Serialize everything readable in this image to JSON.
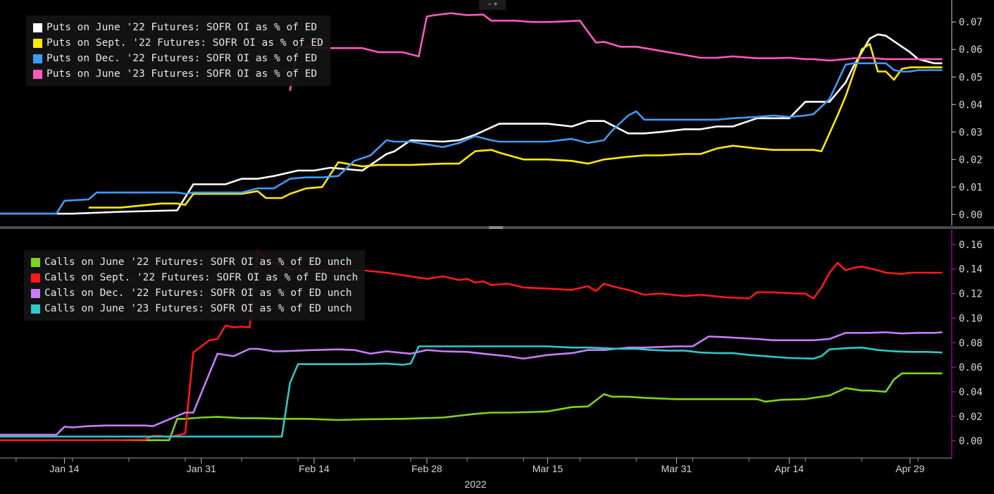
{
  "toolbar": {
    "icon": "chart-menu-icon",
    "glyph": "⌁ ▾"
  },
  "x_axis": {
    "ticks": [
      {
        "label": "Jan 14",
        "day": 13
      },
      {
        "label": "Jan 31",
        "day": 30
      },
      {
        "label": "Feb 14",
        "day": 44
      },
      {
        "label": "Feb 28",
        "day": 58
      },
      {
        "label": "Mar 15",
        "day": 73
      },
      {
        "label": "Mar 31",
        "day": 89
      },
      {
        "label": "Apr 14",
        "day": 103
      },
      {
        "label": "Apr 29",
        "day": 118
      }
    ],
    "year_label": "2022",
    "range": [
      5,
      123
    ]
  },
  "chart_data": [
    {
      "type": "line",
      "panel": "top",
      "ylim": [
        -0.004,
        0.078
      ],
      "y_ticks": [
        "0.07",
        "0.06",
        "0.05",
        "0.04",
        "0.03",
        "0.02",
        "0.01",
        "0.00"
      ],
      "y_tick_values": [
        0.07,
        0.06,
        0.05,
        0.04,
        0.03,
        0.02,
        0.01,
        0.0
      ],
      "legend": "top-left",
      "series": [
        {
          "name": "Puts on June '22 Futures: SOFR OI as % of ED",
          "color": "#ffffff",
          "x": [
            5,
            14,
            20,
            27,
            29,
            33,
            35,
            37,
            39,
            42,
            44,
            46,
            48,
            50,
            53,
            54,
            56,
            60,
            62,
            64,
            67,
            70,
            73,
            76,
            78,
            80,
            83,
            85,
            87,
            90,
            92,
            94,
            96,
            99,
            101,
            103,
            105,
            106,
            108,
            110,
            111,
            113,
            114,
            115,
            117,
            118,
            119,
            121,
            122
          ],
          "y": [
            0.0003,
            0.0003,
            0.001,
            0.0015,
            0.011,
            0.011,
            0.013,
            0.013,
            0.014,
            0.016,
            0.016,
            0.017,
            0.0165,
            0.016,
            0.022,
            0.023,
            0.027,
            0.0265,
            0.027,
            0.029,
            0.033,
            0.033,
            0.033,
            0.032,
            0.034,
            0.034,
            0.0295,
            0.0295,
            0.03,
            0.031,
            0.031,
            0.032,
            0.032,
            0.035,
            0.035,
            0.035,
            0.041,
            0.041,
            0.041,
            0.048,
            0.054,
            0.064,
            0.0655,
            0.065,
            0.061,
            0.059,
            0.0565,
            0.055,
            0.055
          ]
        },
        {
          "name": "Puts on Sept. '22 Futures: SOFR OI as % of ED",
          "color": "#ffeb00",
          "x": [
            16,
            20,
            25,
            27,
            28,
            29,
            35,
            37,
            38,
            40,
            41,
            43,
            45,
            47,
            50,
            52,
            56,
            60,
            62,
            64,
            66,
            67,
            70,
            73,
            76,
            78,
            80,
            83,
            85,
            87,
            90,
            92,
            94,
            96,
            99,
            101,
            104,
            106,
            107,
            109,
            110,
            112,
            113,
            114,
            115,
            116,
            117,
            118,
            119,
            121,
            122
          ],
          "y": [
            0.0025,
            0.0025,
            0.004,
            0.004,
            0.0035,
            0.0075,
            0.0075,
            0.0085,
            0.006,
            0.006,
            0.0075,
            0.0095,
            0.01,
            0.019,
            0.0175,
            0.018,
            0.018,
            0.0185,
            0.0185,
            0.023,
            0.0235,
            0.0225,
            0.02,
            0.02,
            0.0195,
            0.0185,
            0.02,
            0.021,
            0.0215,
            0.0215,
            0.022,
            0.022,
            0.024,
            0.025,
            0.024,
            0.0235,
            0.0235,
            0.0235,
            0.023,
            0.036,
            0.043,
            0.06,
            0.062,
            0.052,
            0.052,
            0.049,
            0.053,
            0.0535,
            0.0535,
            0.0535,
            0.0535
          ]
        },
        {
          "name": "Puts on Dec. '22 Futures: SOFR OI as % of ED",
          "color": "#3f9bf5",
          "x": [
            5,
            12,
            13,
            16,
            17,
            20,
            25,
            27,
            28,
            29,
            33,
            35,
            37,
            39,
            41,
            43,
            45,
            47,
            49,
            51,
            53,
            54,
            56,
            60,
            62,
            64,
            66,
            67,
            70,
            73,
            76,
            78,
            80,
            81,
            83,
            84,
            85,
            87,
            90,
            92,
            94,
            96,
            99,
            101,
            103,
            105,
            106,
            108,
            110,
            111,
            113,
            114,
            115,
            116,
            117,
            118,
            119,
            121,
            122
          ],
          "y": [
            0.0003,
            0.0003,
            0.005,
            0.0055,
            0.008,
            0.008,
            0.008,
            0.008,
            0.0075,
            0.008,
            0.008,
            0.008,
            0.0095,
            0.0095,
            0.013,
            0.0135,
            0.0135,
            0.014,
            0.0195,
            0.0215,
            0.027,
            0.0265,
            0.0265,
            0.0245,
            0.026,
            0.0285,
            0.027,
            0.0265,
            0.0265,
            0.0265,
            0.0275,
            0.026,
            0.027,
            0.0305,
            0.036,
            0.0375,
            0.0345,
            0.0345,
            0.0345,
            0.0345,
            0.0345,
            0.035,
            0.0355,
            0.036,
            0.0355,
            0.036,
            0.0365,
            0.042,
            0.0545,
            0.055,
            0.055,
            0.055,
            0.055,
            0.0525,
            0.052,
            0.052,
            0.0525,
            0.0525,
            0.0525
          ]
        },
        {
          "name": "Puts on June '23 Futures: SOFR OI as % of ED",
          "color": "#ff59c2",
          "x": [
            41,
            42,
            46,
            50,
            52,
            55,
            57,
            58,
            59,
            61,
            63,
            65,
            66,
            69,
            71,
            73,
            75,
            77,
            79,
            80,
            82,
            84,
            86,
            88,
            90,
            92,
            94,
            96,
            99,
            101,
            103,
            105,
            106,
            108,
            110,
            111,
            113,
            115,
            117,
            119,
            121,
            122
          ],
          "y": [
            0.045,
            0.061,
            0.0605,
            0.0605,
            0.059,
            0.059,
            0.0575,
            0.072,
            0.0725,
            0.0732,
            0.0725,
            0.0727,
            0.0705,
            0.0705,
            0.07,
            0.07,
            0.0702,
            0.0705,
            0.0625,
            0.0628,
            0.061,
            0.061,
            0.06,
            0.059,
            0.058,
            0.057,
            0.057,
            0.0575,
            0.0568,
            0.0568,
            0.057,
            0.0565,
            0.0565,
            0.056,
            0.0565,
            0.0568,
            0.057,
            0.0565,
            0.0565,
            0.0565,
            0.0565,
            0.0565
          ]
        }
      ]
    },
    {
      "type": "line",
      "panel": "bottom",
      "ylim": [
        -0.014,
        0.172
      ],
      "y_ticks": [
        "0.16",
        "0.14",
        "0.12",
        "0.10",
        "0.08",
        "0.06",
        "0.04",
        "0.02",
        "0.00"
      ],
      "y_tick_values": [
        0.16,
        0.14,
        0.12,
        0.1,
        0.08,
        0.06,
        0.04,
        0.02,
        0.0
      ],
      "legend": "top-left",
      "series": [
        {
          "name": "Calls on June '22 Futures: SOFR OI as % of ED  unch",
          "color": "#7ed321",
          "x": [
            18,
            26,
            27,
            28,
            30,
            32,
            35,
            37,
            40,
            43,
            47,
            50,
            55,
            60,
            64,
            66,
            68,
            71,
            73,
            76,
            78,
            80,
            81,
            83,
            85,
            89,
            94,
            99,
            100,
            102,
            105,
            107,
            108,
            110,
            112,
            113,
            115,
            116,
            117,
            118,
            120,
            122
          ],
          "y": [
            0.0005,
            0.0005,
            0.018,
            0.018,
            0.019,
            0.0195,
            0.0185,
            0.0185,
            0.018,
            0.018,
            0.017,
            0.0175,
            0.018,
            0.019,
            0.022,
            0.023,
            0.023,
            0.0235,
            0.024,
            0.0275,
            0.028,
            0.038,
            0.036,
            0.036,
            0.035,
            0.034,
            0.034,
            0.034,
            0.032,
            0.0335,
            0.034,
            0.036,
            0.037,
            0.043,
            0.041,
            0.041,
            0.04,
            0.05,
            0.055,
            0.055,
            0.055,
            0.055
          ]
        },
        {
          "name": "Calls on Sept. '22 Futures: SOFR OI as % of ED  unch",
          "color": "#ff1a1a",
          "x": [
            5,
            20,
            23,
            24,
            25,
            26,
            28,
            29,
            31,
            32,
            33,
            34,
            35,
            36,
            37,
            38,
            39,
            41,
            43,
            45,
            47,
            50,
            53,
            55,
            58,
            60,
            62,
            63,
            64,
            65,
            66,
            68,
            70,
            73,
            76,
            78,
            79,
            80,
            81,
            83,
            85,
            87,
            90,
            92,
            95,
            98,
            99,
            101,
            104,
            105,
            106,
            107,
            108,
            109,
            110,
            111,
            112,
            114,
            115,
            117,
            118,
            120,
            122
          ],
          "y": [
            0.0005,
            0.0005,
            0.001,
            0.004,
            0.004,
            0.003,
            0.006,
            0.072,
            0.082,
            0.083,
            0.094,
            0.0925,
            0.093,
            0.0925,
            0.155,
            0.148,
            0.145,
            0.14,
            0.138,
            0.139,
            0.138,
            0.139,
            0.137,
            0.135,
            0.132,
            0.134,
            0.131,
            0.132,
            0.129,
            0.13,
            0.127,
            0.128,
            0.125,
            0.124,
            0.123,
            0.126,
            0.122,
            0.128,
            0.126,
            0.123,
            0.119,
            0.12,
            0.118,
            0.119,
            0.117,
            0.116,
            0.121,
            0.121,
            0.12,
            0.12,
            0.116,
            0.125,
            0.137,
            0.145,
            0.139,
            0.141,
            0.142,
            0.139,
            0.137,
            0.136,
            0.137,
            0.137,
            0.137
          ]
        },
        {
          "name": "Calls on Dec. '22 Futures: SOFR OI as % of ED  unch",
          "color": "#c77dff",
          "x": [
            5,
            12,
            13,
            14,
            16,
            18,
            21,
            23,
            24,
            28,
            29,
            32,
            34,
            36,
            37,
            39,
            40,
            42,
            44,
            47,
            49,
            51,
            53,
            56,
            58,
            60,
            63,
            65,
            68,
            70,
            73,
            76,
            78,
            80,
            83,
            85,
            89,
            91,
            93,
            95,
            99,
            101,
            103,
            105,
            106,
            108,
            110,
            111,
            113,
            115,
            117,
            119,
            121,
            122
          ],
          "y": [
            0.005,
            0.005,
            0.0115,
            0.011,
            0.012,
            0.0125,
            0.0125,
            0.0125,
            0.012,
            0.023,
            0.023,
            0.071,
            0.069,
            0.075,
            0.075,
            0.073,
            0.073,
            0.0735,
            0.074,
            0.0745,
            0.074,
            0.071,
            0.073,
            0.071,
            0.074,
            0.073,
            0.0725,
            0.071,
            0.069,
            0.067,
            0.07,
            0.0715,
            0.074,
            0.074,
            0.076,
            0.076,
            0.077,
            0.077,
            0.085,
            0.0845,
            0.083,
            0.082,
            0.082,
            0.082,
            0.082,
            0.083,
            0.088,
            0.088,
            0.088,
            0.0885,
            0.0875,
            0.088,
            0.088,
            0.0885
          ]
        },
        {
          "name": "Calls on June '23 Futures: SOFR OI as % of ED  unch",
          "color": "#2ec9c9",
          "x": [
            5,
            39,
            40,
            41,
            42,
            44,
            46,
            50,
            53,
            55,
            56,
            57,
            59,
            62,
            65,
            70,
            73,
            76,
            78,
            80,
            82,
            84,
            86,
            88,
            90,
            92,
            94,
            96,
            98,
            100,
            103,
            106,
            107,
            108,
            110,
            112,
            114,
            116,
            118,
            120,
            122
          ],
          "y": [
            0.0035,
            0.0035,
            0.0035,
            0.047,
            0.0625,
            0.0625,
            0.0625,
            0.0625,
            0.063,
            0.062,
            0.063,
            0.077,
            0.077,
            0.077,
            0.077,
            0.077,
            0.077,
            0.076,
            0.076,
            0.0755,
            0.075,
            0.075,
            0.074,
            0.0735,
            0.0735,
            0.072,
            0.0715,
            0.0715,
            0.07,
            0.069,
            0.0675,
            0.067,
            0.069,
            0.0745,
            0.0755,
            0.076,
            0.074,
            0.073,
            0.0725,
            0.0725,
            0.072
          ]
        }
      ]
    }
  ]
}
